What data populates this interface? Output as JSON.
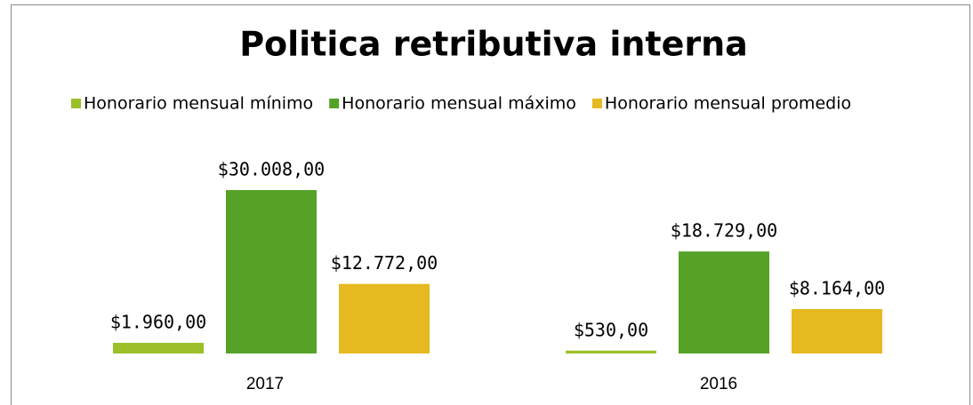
{
  "chart_data": {
    "type": "bar",
    "title": "Politica retributiva interna",
    "categories": [
      "2017",
      "2016"
    ],
    "series": [
      {
        "name": "Honorario mensual mínimo",
        "color": "#9bc02a",
        "values": [
          1960,
          530
        ],
        "value_labels": [
          "$1.960,00",
          "$530,00"
        ]
      },
      {
        "name": "Honorario mensual máximo",
        "color": "#55a227",
        "values": [
          30008,
          18729
        ],
        "value_labels": [
          "$30.008,00",
          "$18.729,00"
        ]
      },
      {
        "name": "Honorario mensual promedio",
        "color": "#e6b921",
        "values": [
          12772,
          8164
        ],
        "value_labels": [
          "$12.772,00",
          "$8.164,00"
        ]
      }
    ],
    "legend": "top"
  }
}
